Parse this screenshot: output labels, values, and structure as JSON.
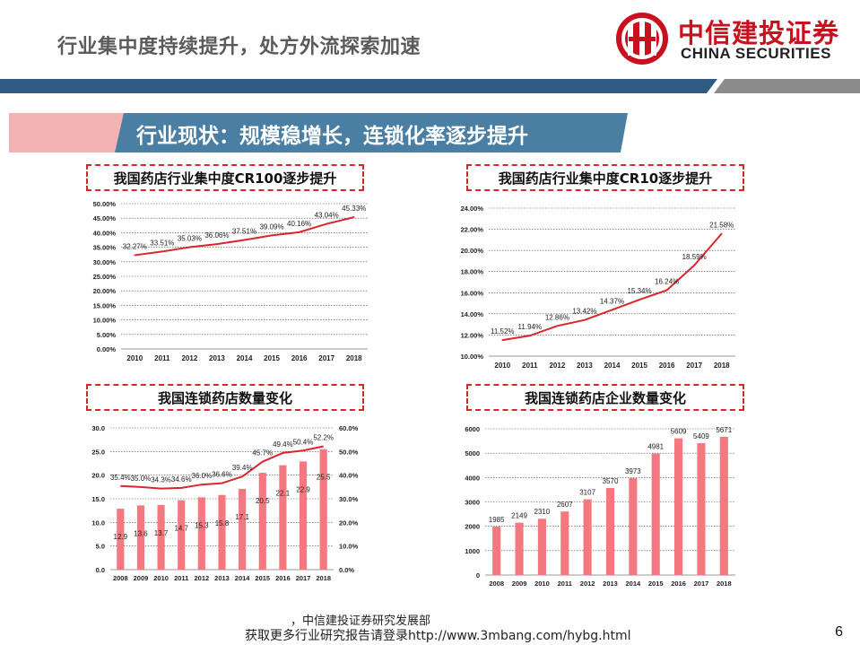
{
  "header": {
    "title": "行业集中度持续提升，处方外流探索加速",
    "logo_cn": "中信建投证券",
    "logo_en": "CHINA SECURITIES"
  },
  "colors": {
    "brand_red": "#c8101f",
    "band_blue": "#2e5b82",
    "banner_pink": "#f3b2b4",
    "banner_blue": "#4a7fa3",
    "line_red": "#d9262e",
    "bar_pink": "#f4787f"
  },
  "banner": {
    "text": "行业现状：规模稳增长，连锁化率逐步提升"
  },
  "chart_data": [
    {
      "type": "line",
      "title": "我国药店行业集中度CR100逐步提升",
      "x": [
        "2010",
        "2011",
        "2012",
        "2013",
        "2014",
        "2015",
        "2016",
        "2017",
        "2018"
      ],
      "values": [
        32.27,
        33.51,
        35.03,
        36.06,
        37.51,
        39.09,
        40.16,
        43.04,
        45.33
      ],
      "labels": [
        "32.27%",
        "33.51%",
        "35.03%",
        "36.06%",
        "37.51%",
        "39.09%",
        "40.16%",
        "43.04%",
        "45.33%"
      ],
      "ylim": [
        0,
        50
      ],
      "yticks": [
        "0.00%",
        "5.00%",
        "10.00%",
        "15.00%",
        "20.00%",
        "25.00%",
        "30.00%",
        "35.00%",
        "40.00%",
        "45.00%",
        "50.00%"
      ]
    },
    {
      "type": "line",
      "title": "我国药店行业集中度CR10逐步提升",
      "x": [
        "2010",
        "2011",
        "2012",
        "2013",
        "2014",
        "2015",
        "2016",
        "2017",
        "2018"
      ],
      "values": [
        11.52,
        11.94,
        12.86,
        13.42,
        14.37,
        15.34,
        16.24,
        18.59,
        21.58
      ],
      "labels": [
        "11.52%",
        "11.94%",
        "12.86%",
        "13.42%",
        "14.37%",
        "15.34%",
        "16.24%",
        "18.59%",
        "21.58%"
      ],
      "ylim": [
        10,
        24
      ],
      "yticks": [
        "10.00%",
        "12.00%",
        "14.00%",
        "16.00%",
        "18.00%",
        "20.00%",
        "22.00%",
        "24.00%"
      ]
    },
    {
      "type": "bar",
      "title": "我国连锁药店数量变化",
      "categories": [
        "2008",
        "2009",
        "2010",
        "2011",
        "2012",
        "2013",
        "2014",
        "2015",
        "2016",
        "2017",
        "2018"
      ],
      "bars": [
        12.9,
        13.6,
        13.7,
        14.7,
        15.3,
        15.8,
        17.1,
        20.5,
        22.1,
        22.9,
        25.5
      ],
      "bar_labels": [
        "12.9",
        "13.6",
        "13.7",
        "14.7",
        "15.3",
        "15.8",
        "17.1",
        "20.5",
        "22.1",
        "22.9",
        "25.5"
      ],
      "line": [
        35.4,
        35.0,
        34.3,
        34.6,
        36.0,
        36.6,
        39.4,
        45.7,
        49.4,
        50.4,
        52.2
      ],
      "line_labels": [
        "35.4%",
        "35.0%",
        "34.3%",
        "34.6%",
        "36.0%",
        "36.6%",
        "39.4%",
        "45.7%",
        "49.4%",
        "50.4%",
        "52.2%"
      ],
      "ylim": [
        0,
        30
      ],
      "yticks": [
        "0.0",
        "5.0",
        "10.0",
        "15.0",
        "20.0",
        "25.0",
        "30.0"
      ],
      "y2lim": [
        0,
        60
      ],
      "y2ticks": [
        "0.0%",
        "10.0%",
        "20.0%",
        "30.0%",
        "40.0%",
        "50.0%",
        "60.0%"
      ]
    },
    {
      "type": "bar",
      "title": "我国连锁药店企业数量变化",
      "categories": [
        "2008",
        "2009",
        "2010",
        "2011",
        "2012",
        "2013",
        "2014",
        "2015",
        "2016",
        "2017",
        "2018"
      ],
      "bars": [
        1985,
        2149,
        2310,
        2607,
        3107,
        3570,
        3973,
        4981,
        5609,
        5409,
        5671
      ],
      "bar_labels": [
        "1985",
        "2149",
        "2310",
        "2607",
        "3107",
        "3570",
        "3973",
        "4981",
        "5609",
        "5409",
        "5671"
      ],
      "ylim": [
        0,
        6000
      ],
      "yticks": [
        "0",
        "1000",
        "2000",
        "3000",
        "4000",
        "5000",
        "6000"
      ]
    }
  ],
  "footer": {
    "source": "，中信建投证券研究发展部",
    "text": "获取更多行业研究报告请登录http://www.3mbang.com/hybg.html",
    "page": "6"
  }
}
